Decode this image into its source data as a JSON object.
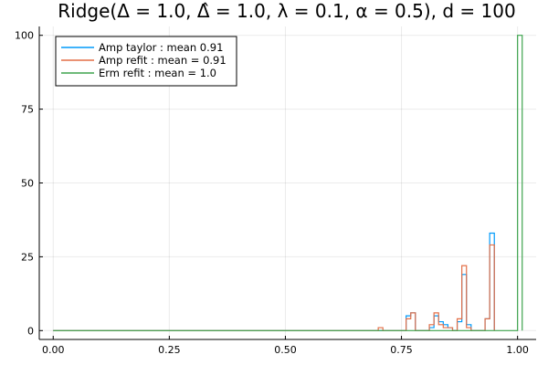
{
  "chart_data": {
    "type": "histogram",
    "title": "Ridge(Δ = 1.0, Δ̂ = 1.0, λ = 0.1, α = 0.5), d = 100",
    "xlabel": "",
    "ylabel": "",
    "xlim": [
      -0.03,
      1.04
    ],
    "ylim": [
      -3,
      103
    ],
    "xticks": [
      0.0,
      0.25,
      0.5,
      0.75,
      1.0
    ],
    "xtick_labels": [
      "0.00",
      "0.25",
      "0.50",
      "0.75",
      "1.00"
    ],
    "yticks": [
      0,
      25,
      50,
      75,
      100
    ],
    "ytick_labels": [
      "0",
      "25",
      "50",
      "75",
      "100"
    ],
    "grid": true,
    "legend_position": "top-left",
    "bin_width": 0.01,
    "series": [
      {
        "name": "Amp taylor : mean 0.91",
        "color": "#009AFA",
        "bins": [
          {
            "x0": 0.76,
            "x1": 0.77,
            "count": 5
          },
          {
            "x0": 0.77,
            "x1": 0.78,
            "count": 6
          },
          {
            "x0": 0.81,
            "x1": 0.82,
            "count": 1
          },
          {
            "x0": 0.82,
            "x1": 0.83,
            "count": 5
          },
          {
            "x0": 0.83,
            "x1": 0.84,
            "count": 3
          },
          {
            "x0": 0.84,
            "x1": 0.85,
            "count": 2
          },
          {
            "x0": 0.85,
            "x1": 0.86,
            "count": 1
          },
          {
            "x0": 0.87,
            "x1": 0.88,
            "count": 3
          },
          {
            "x0": 0.88,
            "x1": 0.89,
            "count": 19
          },
          {
            "x0": 0.89,
            "x1": 0.9,
            "count": 2
          },
          {
            "x0": 0.93,
            "x1": 0.94,
            "count": 4
          },
          {
            "x0": 0.94,
            "x1": 0.95,
            "count": 33
          }
        ]
      },
      {
        "name": "Amp refit : mean = 0.91",
        "color": "#E36F47",
        "bins": [
          {
            "x0": 0.7,
            "x1": 0.71,
            "count": 1
          },
          {
            "x0": 0.76,
            "x1": 0.77,
            "count": 4
          },
          {
            "x0": 0.77,
            "x1": 0.78,
            "count": 6
          },
          {
            "x0": 0.81,
            "x1": 0.82,
            "count": 2
          },
          {
            "x0": 0.82,
            "x1": 0.83,
            "count": 6
          },
          {
            "x0": 0.83,
            "x1": 0.84,
            "count": 2
          },
          {
            "x0": 0.84,
            "x1": 0.85,
            "count": 1
          },
          {
            "x0": 0.85,
            "x1": 0.86,
            "count": 1
          },
          {
            "x0": 0.87,
            "x1": 0.88,
            "count": 4
          },
          {
            "x0": 0.88,
            "x1": 0.89,
            "count": 22
          },
          {
            "x0": 0.89,
            "x1": 0.9,
            "count": 1
          },
          {
            "x0": 0.93,
            "x1": 0.94,
            "count": 4
          },
          {
            "x0": 0.94,
            "x1": 0.95,
            "count": 29
          }
        ]
      },
      {
        "name": "Erm refit : mean = 1.0",
        "color": "#3EA44E",
        "bins": [
          {
            "x0": 0.99,
            "x1": 1.0,
            "count": 0
          },
          {
            "x0": 1.0,
            "x1": 1.01,
            "count": 100
          }
        ]
      }
    ]
  }
}
